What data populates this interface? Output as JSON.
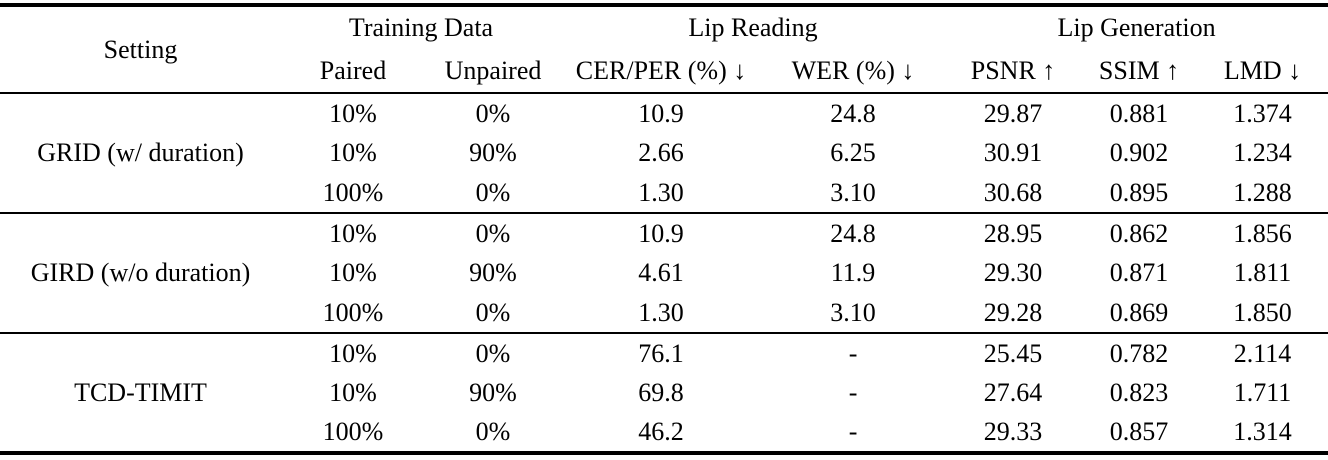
{
  "table": {
    "header": {
      "setting_label": "Setting",
      "groups": [
        {
          "label": "Training Data"
        },
        {
          "label": "Lip Reading"
        },
        {
          "label": "Lip Generation"
        }
      ],
      "subcolumns": [
        "Paired",
        "Unpaired",
        "CER/PER (%) ↓",
        "WER (%) ↓",
        "PSNR ↑",
        "SSIM ↑",
        "LMD ↓"
      ]
    },
    "groups": [
      {
        "setting": "GRID (w/ duration)",
        "rows": [
          [
            "10%",
            "0%",
            "10.9",
            "24.8",
            "29.87",
            "0.881",
            "1.374"
          ],
          [
            "10%",
            "90%",
            "2.66",
            "6.25",
            "30.91",
            "0.902",
            "1.234"
          ],
          [
            "100%",
            "0%",
            "1.30",
            "3.10",
            "30.68",
            "0.895",
            "1.288"
          ]
        ]
      },
      {
        "setting": "GIRD (w/o duration)",
        "rows": [
          [
            "10%",
            "0%",
            "10.9",
            "24.8",
            "28.95",
            "0.862",
            "1.856"
          ],
          [
            "10%",
            "90%",
            "4.61",
            "11.9",
            "29.30",
            "0.871",
            "1.811"
          ],
          [
            "100%",
            "0%",
            "1.30",
            "3.10",
            "29.28",
            "0.869",
            "1.850"
          ]
        ]
      },
      {
        "setting": "TCD-TIMIT",
        "rows": [
          [
            "10%",
            "0%",
            "76.1",
            "-",
            "25.45",
            "0.782",
            "2.114"
          ],
          [
            "10%",
            "90%",
            "69.8",
            "-",
            "27.64",
            "0.823",
            "1.711"
          ],
          [
            "100%",
            "0%",
            "46.2",
            "-",
            "29.33",
            "0.857",
            "1.314"
          ]
        ]
      }
    ]
  },
  "colors": {
    "text": "#000000",
    "rule": "#000000",
    "background": "#ffffff"
  }
}
